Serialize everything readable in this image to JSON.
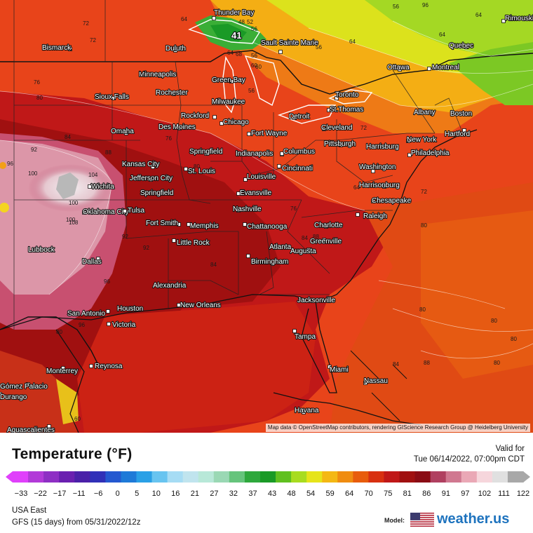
{
  "map": {
    "attribution": "Map data © OpenStreetMap contributors, rendering GIScience Research Group @ Heidelberg University",
    "min_marker": "41",
    "cities": [
      {
        "name": "Thunder Bay"
      },
      {
        "name": "Rimouski"
      },
      {
        "name": "Bismarck"
      },
      {
        "name": "Duluth"
      },
      {
        "name": "Sault Sainte Marie"
      },
      {
        "name": "Quebec"
      },
      {
        "name": "Ottawa"
      },
      {
        "name": "Montreal"
      },
      {
        "name": "Minneapolis"
      },
      {
        "name": "Green Bay"
      },
      {
        "name": "Rochester"
      },
      {
        "name": "Toronto"
      },
      {
        "name": "Sioux Falls"
      },
      {
        "name": "Milwaukee"
      },
      {
        "name": "St.Thomas"
      },
      {
        "name": "Albany"
      },
      {
        "name": "Boston"
      },
      {
        "name": "Rockford"
      },
      {
        "name": "Detroit"
      },
      {
        "name": "Chicago"
      },
      {
        "name": "Des Moines"
      },
      {
        "name": "Cleveland"
      },
      {
        "name": "Hartford"
      },
      {
        "name": "Omaha"
      },
      {
        "name": "Fort Wayne"
      },
      {
        "name": "New York"
      },
      {
        "name": "Pittsburgh"
      },
      {
        "name": "Harrisburg"
      },
      {
        "name": "Springfield"
      },
      {
        "name": "Indianapolis"
      },
      {
        "name": "Columbus"
      },
      {
        "name": "Philadelphia"
      },
      {
        "name": "Kansas City"
      },
      {
        "name": "Cincinnati"
      },
      {
        "name": "Washington"
      },
      {
        "name": "St. Louis"
      },
      {
        "name": "Jefferson City"
      },
      {
        "name": "Louisville"
      },
      {
        "name": "Wichita"
      },
      {
        "name": "Evansville"
      },
      {
        "name": "Harrisonburg"
      },
      {
        "name": "Springfield"
      },
      {
        "name": "Chesapeake"
      },
      {
        "name": "Oklahoma City"
      },
      {
        "name": "Tulsa"
      },
      {
        "name": "Nashville"
      },
      {
        "name": "Raleigh"
      },
      {
        "name": "Fort Smith"
      },
      {
        "name": "Memphis"
      },
      {
        "name": "Chattanooga"
      },
      {
        "name": "Charlotte"
      },
      {
        "name": "Greenville"
      },
      {
        "name": "Little Rock"
      },
      {
        "name": "Atlanta"
      },
      {
        "name": "Augusta"
      },
      {
        "name": "Lubbock"
      },
      {
        "name": "Birmingham"
      },
      {
        "name": "Dallas"
      },
      {
        "name": "Alexandria"
      },
      {
        "name": "Jacksonville"
      },
      {
        "name": "New Orleans"
      },
      {
        "name": "Houston"
      },
      {
        "name": "San Antonio"
      },
      {
        "name": "Victoria"
      },
      {
        "name": "Tampa"
      },
      {
        "name": "Reynosa"
      },
      {
        "name": "Miami"
      },
      {
        "name": "Monterrey"
      },
      {
        "name": "Nassau"
      },
      {
        "name": "Gómez Palacio"
      },
      {
        "name": "Durango"
      },
      {
        "name": "Havana"
      },
      {
        "name": "Aguascalientes"
      }
    ],
    "isotherm_labels": [
      "64",
      "72",
      "72",
      "48",
      "52",
      "56",
      "60",
      "56",
      "56",
      "76",
      "80",
      "72",
      "68",
      "64",
      "60",
      "56",
      "64",
      "56",
      "76",
      "80",
      "84",
      "88",
      "92",
      "96",
      "100",
      "104",
      "100",
      "108",
      "100",
      "92",
      "96",
      "96",
      "92",
      "84",
      "80",
      "72",
      "64",
      "76",
      "72",
      "80",
      "80",
      "80",
      "80",
      "80",
      "84",
      "84",
      "88",
      "96",
      "64",
      "60",
      "88",
      "64"
    ]
  },
  "legend": {
    "title": "Temperature (°F)",
    "valid_for": "Valid for",
    "valid_date": "Tue 06/14/2022, 07:00pm CDT",
    "ticks": [
      "−33",
      "−22",
      "−17",
      "−11",
      "−6",
      "0",
      "5",
      "10",
      "16",
      "21",
      "27",
      "32",
      "37",
      "43",
      "48",
      "54",
      "59",
      "64",
      "70",
      "75",
      "81",
      "86",
      "91",
      "97",
      "102",
      "111",
      "122"
    ],
    "region": "USA East",
    "run": "GFS (15 days) from  05/31/2022/12z",
    "model_label": "Model:",
    "brand": "weather.us",
    "colors": [
      "#e040fb",
      "#b23ad8",
      "#8e2fc4",
      "#6a1fb0",
      "#4a20a8",
      "#3030b8",
      "#2458d0",
      "#1e7ad8",
      "#2aa0e6",
      "#68c4f0",
      "#a6dcf4",
      "#c0e4ee",
      "#b8e8d8",
      "#9ad8b4",
      "#66c47c",
      "#2ea83c",
      "#1a9a26",
      "#60c020",
      "#a8dc20",
      "#e6e41a",
      "#f4b814",
      "#f08c10",
      "#e85c0c",
      "#d83010",
      "#c01818",
      "#a01010",
      "#8a0c14",
      "#b04060",
      "#d07890",
      "#eaa8b6",
      "#f6d6dc",
      "#e0e0e0",
      "#a8a8a8"
    ]
  }
}
